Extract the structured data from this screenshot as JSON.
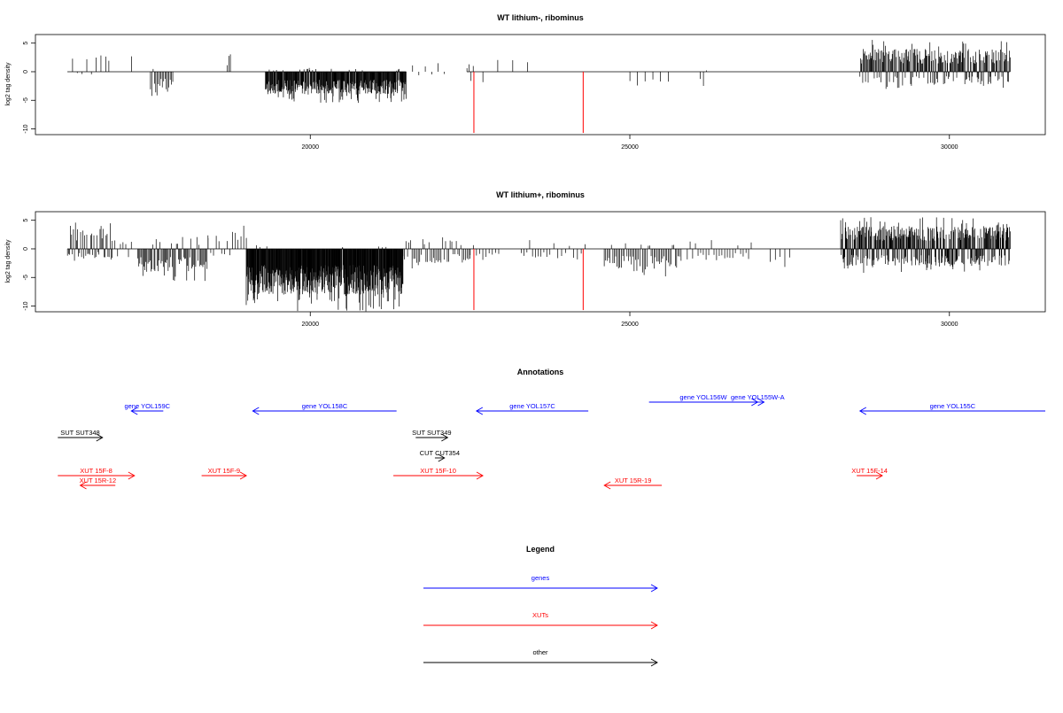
{
  "colors": {
    "black": "#000000",
    "red": "#ff0000",
    "blue": "#0000ff"
  },
  "chart_data": [
    {
      "type": "bar",
      "title": "WT lithium-, ribominus",
      "ylabel": "log2 tag density",
      "xlabel": "",
      "xlim": [
        15700,
        31500
      ],
      "ylim": [
        -11,
        6.5
      ],
      "xticks": [
        20000,
        25000,
        30000
      ],
      "yticks": [
        5,
        0,
        -5,
        -10
      ],
      "baseline": {
        "from": 16200,
        "to": 30950
      },
      "gaps": [
        [
          21500,
          22450
        ]
      ],
      "clusters": [
        {
          "x0": 16280,
          "x1": 16800,
          "n": 8,
          "pos": 3.0,
          "neg": 0.5,
          "pp": 0.5
        },
        {
          "x0": 16850,
          "x1": 17200,
          "n": 2,
          "pos": 3.2,
          "neg": 0.2,
          "pp": 0.9
        },
        {
          "x0": 17500,
          "x1": 17850,
          "n": 18,
          "pos": 0.6,
          "neg": 3.5,
          "pp": 0.1
        },
        {
          "x0": 18700,
          "x1": 18750,
          "n": 3,
          "pos": 3.2,
          "neg": 0.2,
          "pp": 1.0
        },
        {
          "x0": 19300,
          "x1": 21500,
          "n": 300,
          "pos": 0.5,
          "neg": 4.0,
          "pp": 0.05
        },
        {
          "x0": 21600,
          "x1": 22100,
          "n": 6,
          "pos": 1.5,
          "neg": 1.0,
          "pp": 0.6
        },
        {
          "x0": 22450,
          "x1": 22550,
          "n": 4,
          "pos": 1.0,
          "neg": 2.0,
          "pp": 0.3
        },
        {
          "x0": 22700,
          "x1": 23400,
          "n": 4,
          "pos": 2.5,
          "neg": 2.0,
          "pp": 0.4
        },
        {
          "x0": 25000,
          "x1": 25600,
          "n": 6,
          "pos": 0.5,
          "neg": 2.0,
          "pp": 0.1
        },
        {
          "x0": 26100,
          "x1": 26200,
          "n": 3,
          "pos": 0.3,
          "neg": 2.5,
          "pp": 0.1
        },
        {
          "x0": 28600,
          "x1": 30950,
          "n": 220,
          "pos": 4.0,
          "neg": 2.2,
          "pp": 0.75
        }
      ],
      "highlights": [
        {
          "x": 22560,
          "y": -10.7
        },
        {
          "x": 24270,
          "y": -10.7
        }
      ]
    },
    {
      "type": "bar",
      "title": "WT lithium+, ribominus",
      "ylabel": "log2 tag density",
      "xlabel": "",
      "xlim": [
        15700,
        31500
      ],
      "ylim": [
        -11,
        6.5
      ],
      "xticks": [
        20000,
        25000,
        30000
      ],
      "yticks": [
        5,
        0,
        -5,
        -10
      ],
      "baseline": {
        "from": 16200,
        "to": 30950
      },
      "gaps": [],
      "clusters": [
        {
          "x0": 16200,
          "x1": 16900,
          "n": 45,
          "pos": 3.5,
          "neg": 1.5,
          "pp": 0.6
        },
        {
          "x0": 16900,
          "x1": 17200,
          "n": 8,
          "pos": 1.5,
          "neg": 1.5,
          "pp": 0.3
        },
        {
          "x0": 17300,
          "x1": 18400,
          "n": 70,
          "pos": 1.5,
          "neg": 4.0,
          "pp": 0.2
        },
        {
          "x0": 18400,
          "x1": 19000,
          "n": 15,
          "pos": 3.0,
          "neg": 1.5,
          "pp": 0.5
        },
        {
          "x0": 19000,
          "x1": 21450,
          "n": 420,
          "pos": 0.5,
          "neg": 8.0,
          "pp": 0.02
        },
        {
          "x0": 21450,
          "x1": 22500,
          "n": 45,
          "pos": 1.5,
          "neg": 2.5,
          "pp": 0.25
        },
        {
          "x0": 22500,
          "x1": 22950,
          "n": 10,
          "pos": 1.0,
          "neg": 2.0,
          "pp": 0.15
        },
        {
          "x0": 23300,
          "x1": 23700,
          "n": 10,
          "pos": 1.5,
          "neg": 1.5,
          "pp": 0.2
        },
        {
          "x0": 23750,
          "x1": 24300,
          "n": 10,
          "pos": 1.0,
          "neg": 1.5,
          "pp": 0.15
        },
        {
          "x0": 24600,
          "x1": 25800,
          "n": 55,
          "pos": 1.0,
          "neg": 3.5,
          "pp": 0.1
        },
        {
          "x0": 25900,
          "x1": 26900,
          "n": 25,
          "pos": 1.5,
          "neg": 2.0,
          "pp": 0.2
        },
        {
          "x0": 27200,
          "x1": 27500,
          "n": 5,
          "pos": 0.5,
          "neg": 2.5,
          "pp": 0.1
        },
        {
          "x0": 28300,
          "x1": 30950,
          "n": 380,
          "pos": 4.0,
          "neg": 3.0,
          "pp": 0.6
        }
      ],
      "highlights": [
        {
          "x": 22560,
          "y": -10.7
        },
        {
          "x": 24270,
          "y": -10.7
        }
      ]
    }
  ],
  "annotations": {
    "title": "Annotations",
    "xlim": [
      15700,
      31500
    ],
    "features": [
      {
        "label": "gene YOL159C",
        "color": "blue",
        "from": 17200,
        "to": 17700,
        "dir": "left",
        "row": 1
      },
      {
        "label": "gene YOL158C",
        "color": "blue",
        "from": 19100,
        "to": 21350,
        "dir": "left",
        "row": 1
      },
      {
        "label": "gene YOL157C",
        "color": "blue",
        "from": 22600,
        "to": 24350,
        "dir": "left",
        "row": 1
      },
      {
        "label": "gene YOL156W",
        "color": "blue",
        "from": 25300,
        "to": 27000,
        "dir": "right",
        "row": 0
      },
      {
        "label": "gene YOL155W-A",
        "color": "blue",
        "from": 26900,
        "to": 27100,
        "dir": "right",
        "row": 0
      },
      {
        "label": "gene YOL155C",
        "color": "blue",
        "from": 28600,
        "to": 31500,
        "dir": "left",
        "row": 1
      },
      {
        "label": "SUT SUT348",
        "color": "black",
        "from": 16050,
        "to": 16750,
        "dir": "right",
        "row": 2
      },
      {
        "label": "SUT SUT349",
        "color": "black",
        "from": 21650,
        "to": 22150,
        "dir": "right",
        "row": 2
      },
      {
        "label": "CUT CUT354",
        "color": "black",
        "from": 21950,
        "to": 22100,
        "dir": "right",
        "row": 3
      },
      {
        "label": "XUT 15F-8",
        "color": "red",
        "from": 16050,
        "to": 17250,
        "dir": "right",
        "row": 4
      },
      {
        "label": "XUT 15R-12",
        "color": "red",
        "from": 16400,
        "to": 16950,
        "dir": "left",
        "row": 5
      },
      {
        "label": "XUT 15F-9",
        "color": "red",
        "from": 18300,
        "to": 19000,
        "dir": "right",
        "row": 4
      },
      {
        "label": "XUT 15F-10",
        "color": "red",
        "from": 21300,
        "to": 22700,
        "dir": "right",
        "row": 4
      },
      {
        "label": "XUT 15R-19",
        "color": "red",
        "from": 24600,
        "to": 25500,
        "dir": "left",
        "row": 5
      },
      {
        "label": "XUT 15F-14",
        "color": "red",
        "from": 28550,
        "to": 28950,
        "dir": "right",
        "row": 4
      }
    ]
  },
  "legend": {
    "title": "Legend",
    "items": [
      {
        "label": "genes",
        "color": "blue"
      },
      {
        "label": "XUTs",
        "color": "red"
      },
      {
        "label": "other",
        "color": "black"
      }
    ]
  }
}
